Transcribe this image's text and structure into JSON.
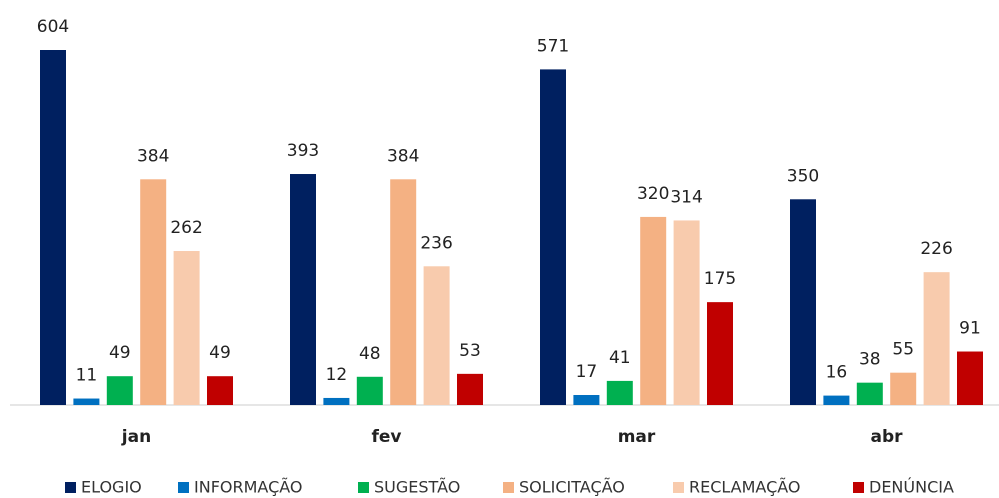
{
  "chart_data": {
    "type": "bar",
    "categories": [
      "jan",
      "fev",
      "mar",
      "abr"
    ],
    "series": [
      {
        "name": "ELOGIO",
        "color": "#002060",
        "values": [
          604,
          393,
          571,
          350
        ]
      },
      {
        "name": "INFORMAÇÃO",
        "color": "#0070c0",
        "values": [
          11,
          12,
          17,
          16
        ]
      },
      {
        "name": "SUGESTÃO",
        "color": "#00b050",
        "values": [
          49,
          48,
          41,
          38
        ]
      },
      {
        "name": "SOLICITAÇÃO",
        "color": "#f4b183",
        "values": [
          384,
          384,
          320,
          55
        ]
      },
      {
        "name": "RECLAMAÇÃO",
        "color": "#f8cbad",
        "values": [
          262,
          236,
          314,
          226
        ]
      },
      {
        "name": "DENÚNCIA",
        "color": "#c00000",
        "values": [
          49,
          53,
          175,
          91
        ]
      }
    ],
    "legend": "bottom"
  }
}
